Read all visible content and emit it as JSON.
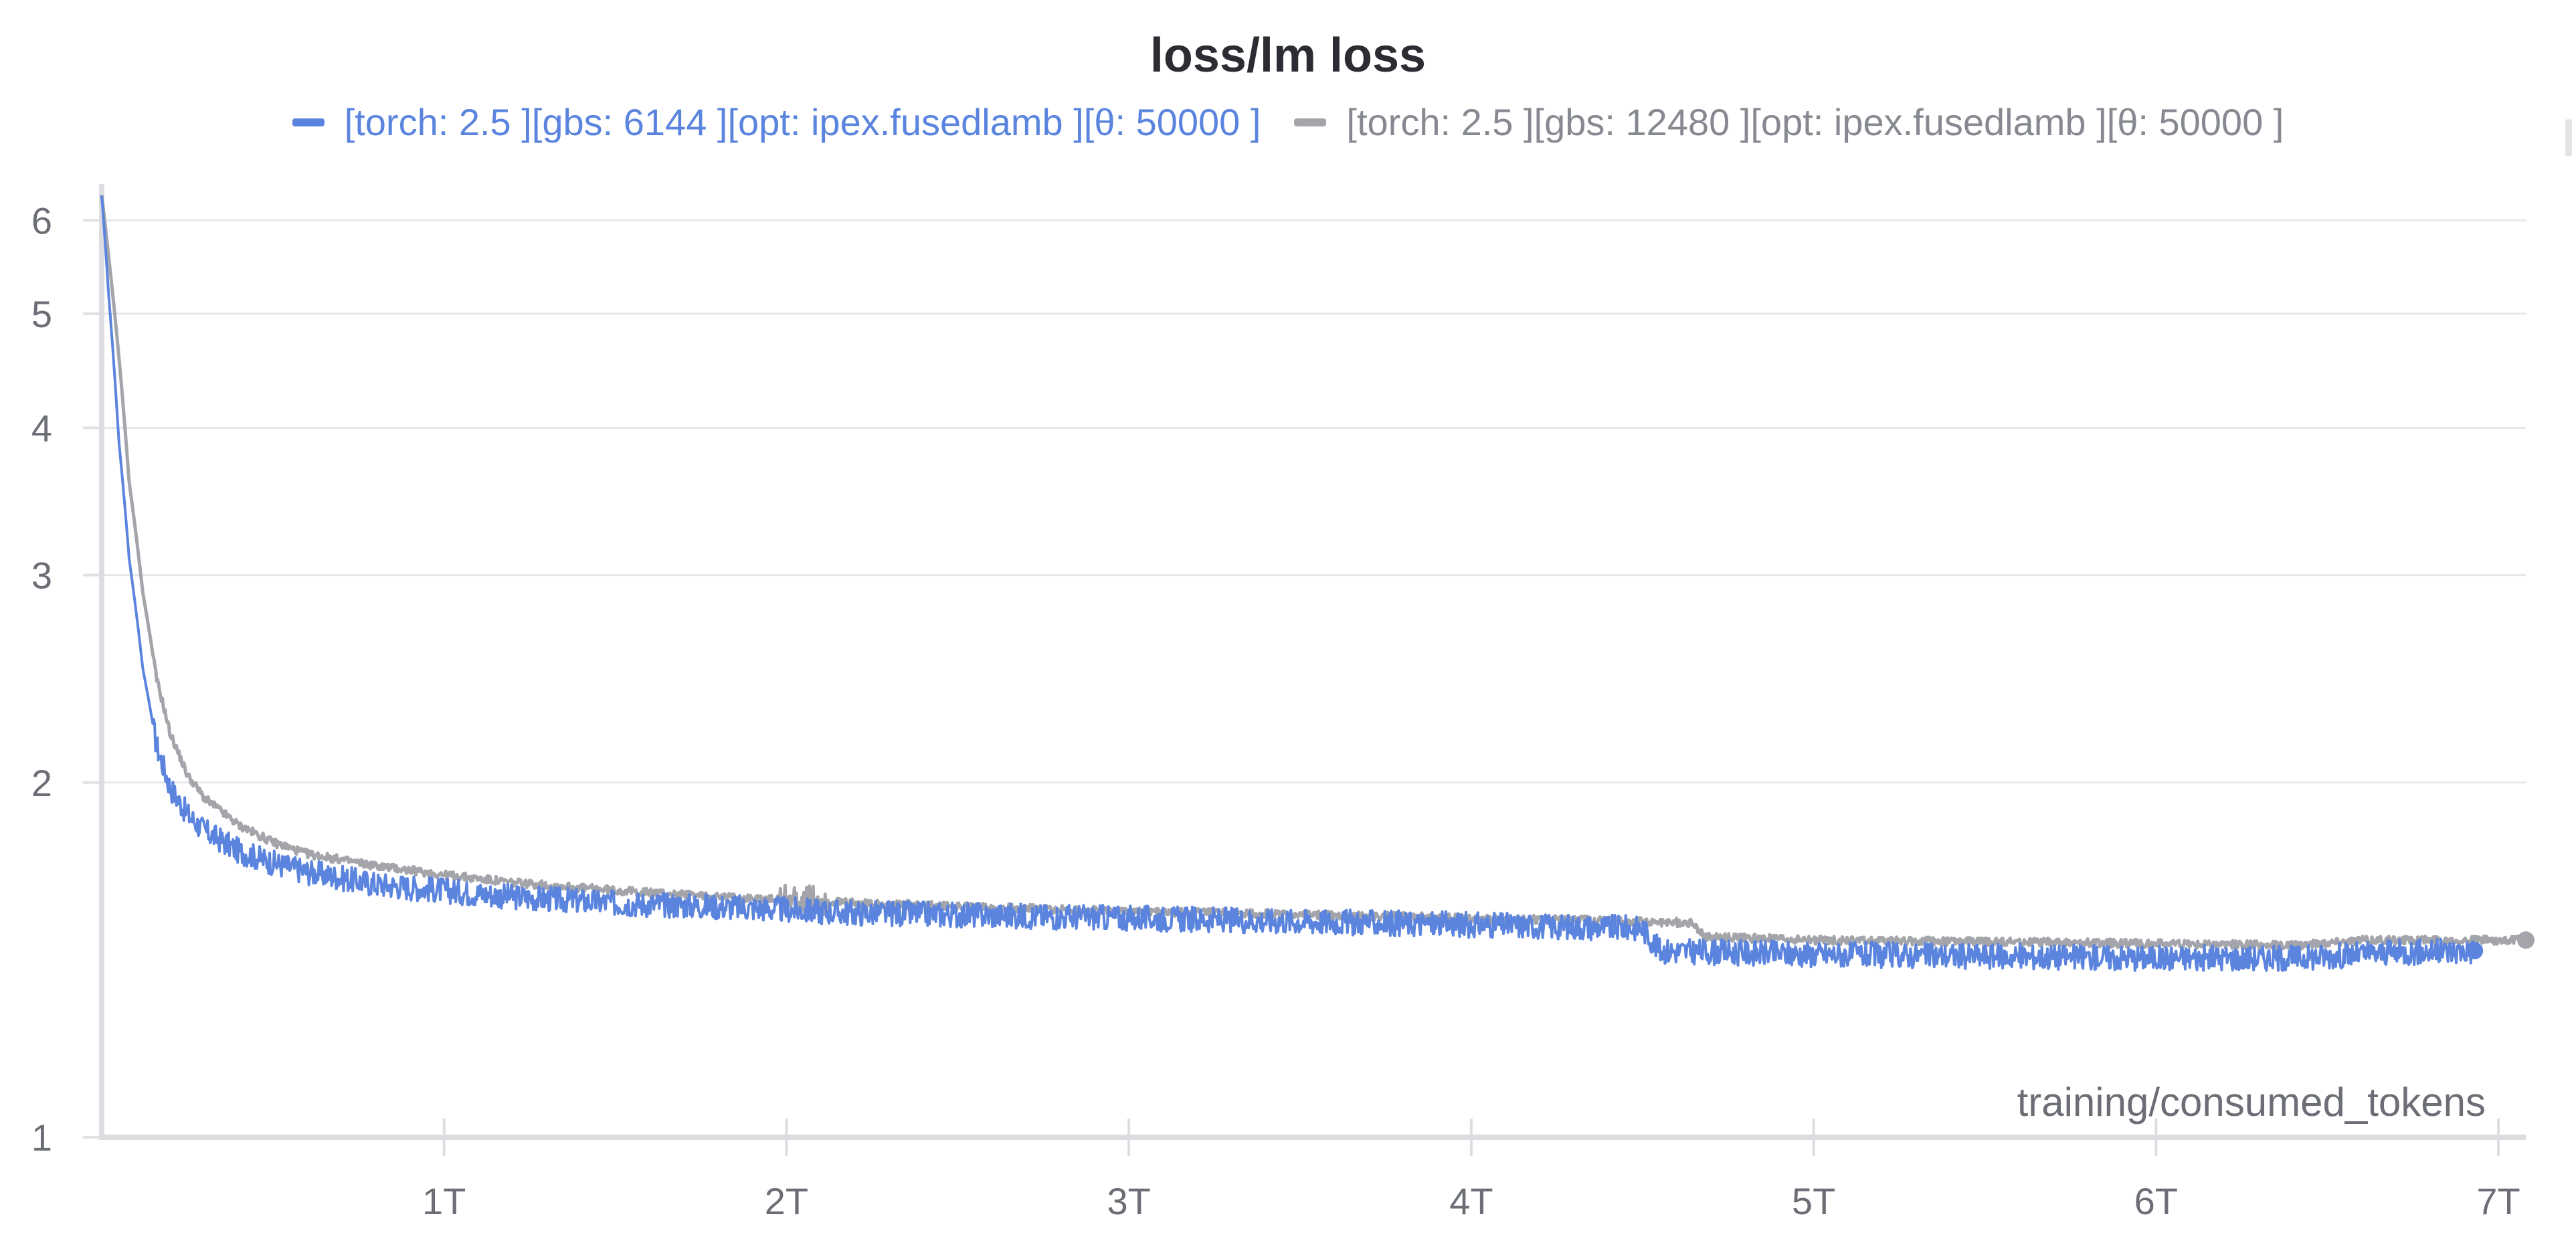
{
  "chart_data": {
    "type": "line",
    "title": "loss/lm loss",
    "xlabel": "training/consumed_tokens",
    "ylabel": "",
    "yscale": "log",
    "xlim": [
      0,
      7.08
    ],
    "ylim": [
      1,
      6.4
    ],
    "x_unit": "T",
    "grid": true,
    "legend_position": "top",
    "x_ticks": [
      {
        "value": 1,
        "label": "1T"
      },
      {
        "value": 2,
        "label": "2T"
      },
      {
        "value": 3,
        "label": "3T"
      },
      {
        "value": 4,
        "label": "4T"
      },
      {
        "value": 5,
        "label": "5T"
      },
      {
        "value": 6,
        "label": "6T"
      },
      {
        "value": 7,
        "label": "7T"
      }
    ],
    "y_ticks": [
      {
        "value": 1,
        "label": "1"
      },
      {
        "value": 2,
        "label": "2"
      },
      {
        "value": 3,
        "label": "3"
      },
      {
        "value": 4,
        "label": "4"
      },
      {
        "value": 5,
        "label": "5"
      },
      {
        "value": 6,
        "label": "6"
      }
    ],
    "series": [
      {
        "name": "[torch: 2.5 ][gbs: 6144 ][opt: ipex.fusedlamb ][θ: 50000 ]",
        "color": "#5b84de",
        "x": [
          0,
          0.02,
          0.05,
          0.08,
          0.12,
          0.16,
          0.2,
          0.25,
          0.3,
          0.4,
          0.5,
          0.6,
          0.8,
          1.0,
          1.2,
          1.5,
          1.8,
          2.0,
          2.2,
          2.5,
          3.0,
          3.5,
          4.0,
          4.5,
          4.55,
          5.0,
          5.5,
          6.0,
          6.4,
          6.7,
          6.93
        ],
        "values": [
          6.3,
          5.2,
          3.9,
          3.1,
          2.5,
          2.15,
          1.98,
          1.88,
          1.82,
          1.75,
          1.71,
          1.68,
          1.64,
          1.62,
          1.6,
          1.58,
          1.57,
          1.56,
          1.55,
          1.545,
          1.535,
          1.525,
          1.515,
          1.505,
          1.44,
          1.43,
          1.425,
          1.42,
          1.42,
          1.435,
          1.44
        ],
        "noise": 0.025
      },
      {
        "name": "[torch: 2.5 ][gbs: 12480 ][opt: ipex.fusedlamb ][θ: 50000 ]",
        "color": "#a3a5aa",
        "x": [
          0,
          0.02,
          0.05,
          0.08,
          0.12,
          0.16,
          0.2,
          0.25,
          0.3,
          0.4,
          0.5,
          0.6,
          0.8,
          1.0,
          1.2,
          1.5,
          1.8,
          2.0,
          2.2,
          2.5,
          3.0,
          3.5,
          4.0,
          4.5,
          4.65,
          4.68,
          5.0,
          5.5,
          6.0,
          6.4,
          6.6,
          7.08
        ],
        "values": [
          6.3,
          5.6,
          4.6,
          3.6,
          2.9,
          2.45,
          2.2,
          2.03,
          1.94,
          1.84,
          1.78,
          1.74,
          1.7,
          1.67,
          1.645,
          1.62,
          1.6,
          1.59,
          1.58,
          1.57,
          1.555,
          1.545,
          1.535,
          1.525,
          1.52,
          1.48,
          1.47,
          1.465,
          1.46,
          1.455,
          1.47,
          1.47
        ],
        "noise": 0.008
      }
    ]
  }
}
